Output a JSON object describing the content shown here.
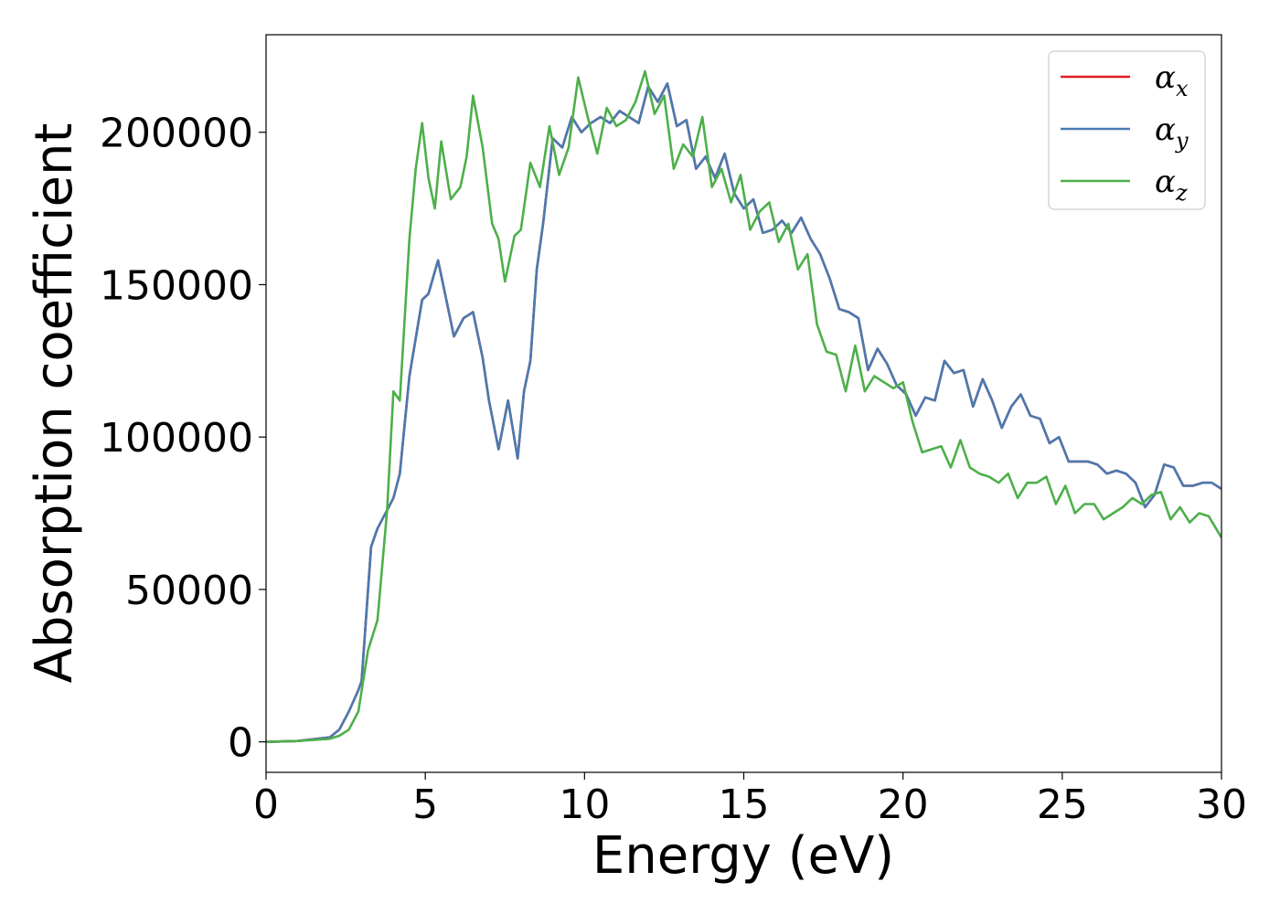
{
  "chart_data": {
    "type": "line",
    "title": "",
    "xlabel": "Energy (eV)",
    "ylabel": "Absorption coefficient",
    "xlim": [
      0,
      30
    ],
    "ylim": [
      -10000,
      232000
    ],
    "xticks": [
      0,
      5,
      10,
      15,
      20,
      25,
      30
    ],
    "yticks": [
      0,
      50000,
      100000,
      150000,
      200000
    ],
    "grid": false,
    "legend_position": "top-right",
    "series": [
      {
        "name": "α",
        "subscript": "x",
        "color": "#e41a1c",
        "x": [
          0,
          1,
          2,
          2.3,
          2.6,
          2.9,
          3.0,
          3.3,
          3.5,
          3.8,
          4.0,
          4.2,
          4.5,
          4.9,
          5.1,
          5.4,
          5.6,
          5.9,
          6.2,
          6.5,
          6.8,
          7.0,
          7.3,
          7.6,
          7.9,
          8.1,
          8.3,
          8.5,
          8.7,
          9.0,
          9.3,
          9.6,
          9.9,
          10.2,
          10.5,
          10.8,
          11.1,
          11.4,
          11.7,
          12.0,
          12.3,
          12.6,
          12.9,
          13.2,
          13.5,
          13.8,
          14.1,
          14.4,
          14.7,
          15.0,
          15.3,
          15.6,
          15.9,
          16.2,
          16.5,
          16.8,
          17.1,
          17.4,
          17.7,
          18.0,
          18.3,
          18.6,
          18.9,
          19.2,
          19.5,
          19.8,
          20.1,
          20.4,
          20.7,
          21.0,
          21.3,
          21.6,
          21.9,
          22.2,
          22.5,
          22.8,
          23.1,
          23.4,
          23.7,
          24.0,
          24.3,
          24.6,
          24.9,
          25.2,
          25.5,
          25.8,
          26.1,
          26.4,
          26.7,
          27.0,
          27.3,
          27.6,
          27.9,
          28.2,
          28.5,
          28.8,
          29.1,
          29.4,
          29.7,
          30.0
        ],
        "y": [
          0,
          300,
          1500,
          4000,
          10000,
          17000,
          20000,
          64000,
          70000,
          76000,
          80000,
          88000,
          120000,
          145000,
          147000,
          158000,
          148000,
          133000,
          139000,
          141000,
          126000,
          112000,
          96000,
          112000,
          93000,
          115000,
          125000,
          155000,
          170000,
          198000,
          195000,
          205000,
          200000,
          203000,
          205000,
          203000,
          207000,
          205000,
          203000,
          215000,
          210000,
          216000,
          202000,
          204000,
          188000,
          192000,
          185000,
          193000,
          180000,
          175000,
          178000,
          167000,
          168000,
          171000,
          167000,
          172000,
          165000,
          160000,
          152000,
          142000,
          141000,
          139000,
          122000,
          129000,
          124000,
          117000,
          114000,
          107000,
          113000,
          112000,
          125000,
          121000,
          122000,
          110000,
          119000,
          112000,
          103000,
          110000,
          114000,
          107000,
          106000,
          98000,
          100000,
          92000,
          92000,
          92000,
          91000,
          88000,
          89000,
          88000,
          85000,
          77000,
          81000,
          91000,
          90000,
          84000,
          84000,
          85000,
          85000,
          83000
        ]
      },
      {
        "name": "α",
        "subscript": "y",
        "color": "#4a7ab0",
        "x": [
          0,
          1,
          2,
          2.3,
          2.6,
          2.9,
          3.0,
          3.3,
          3.5,
          3.8,
          4.0,
          4.2,
          4.5,
          4.9,
          5.1,
          5.4,
          5.6,
          5.9,
          6.2,
          6.5,
          6.8,
          7.0,
          7.3,
          7.6,
          7.9,
          8.1,
          8.3,
          8.5,
          8.7,
          9.0,
          9.3,
          9.6,
          9.9,
          10.2,
          10.5,
          10.8,
          11.1,
          11.4,
          11.7,
          12.0,
          12.3,
          12.6,
          12.9,
          13.2,
          13.5,
          13.8,
          14.1,
          14.4,
          14.7,
          15.0,
          15.3,
          15.6,
          15.9,
          16.2,
          16.5,
          16.8,
          17.1,
          17.4,
          17.7,
          18.0,
          18.3,
          18.6,
          18.9,
          19.2,
          19.5,
          19.8,
          20.1,
          20.4,
          20.7,
          21.0,
          21.3,
          21.6,
          21.9,
          22.2,
          22.5,
          22.8,
          23.1,
          23.4,
          23.7,
          24.0,
          24.3,
          24.6,
          24.9,
          25.2,
          25.5,
          25.8,
          26.1,
          26.4,
          26.7,
          27.0,
          27.3,
          27.6,
          27.9,
          28.2,
          28.5,
          28.8,
          29.1,
          29.4,
          29.7,
          30.0
        ],
        "y": [
          0,
          300,
          1500,
          4000,
          10000,
          17000,
          20000,
          64000,
          70000,
          76000,
          80000,
          88000,
          120000,
          145000,
          147000,
          158000,
          148000,
          133000,
          139000,
          141000,
          126000,
          112000,
          96000,
          112000,
          93000,
          115000,
          125000,
          155000,
          170000,
          198000,
          195000,
          205000,
          200000,
          203000,
          205000,
          203000,
          207000,
          205000,
          203000,
          215000,
          210000,
          216000,
          202000,
          204000,
          188000,
          192000,
          185000,
          193000,
          180000,
          175000,
          178000,
          167000,
          168000,
          171000,
          167000,
          172000,
          165000,
          160000,
          152000,
          142000,
          141000,
          139000,
          122000,
          129000,
          124000,
          117000,
          114000,
          107000,
          113000,
          112000,
          125000,
          121000,
          122000,
          110000,
          119000,
          112000,
          103000,
          110000,
          114000,
          107000,
          106000,
          98000,
          100000,
          92000,
          92000,
          92000,
          91000,
          88000,
          89000,
          88000,
          85000,
          77000,
          81000,
          91000,
          90000,
          84000,
          84000,
          85000,
          85000,
          83000
        ]
      },
      {
        "name": "α",
        "subscript": "z",
        "color": "#4daf4a",
        "x": [
          0,
          1,
          2,
          2.3,
          2.6,
          2.9,
          3.2,
          3.5,
          3.8,
          4.0,
          4.2,
          4.5,
          4.7,
          4.9,
          5.1,
          5.3,
          5.5,
          5.8,
          6.1,
          6.3,
          6.5,
          6.8,
          7.1,
          7.3,
          7.5,
          7.8,
          8.0,
          8.3,
          8.6,
          8.9,
          9.2,
          9.5,
          9.8,
          10.1,
          10.4,
          10.7,
          11.0,
          11.3,
          11.6,
          11.9,
          12.2,
          12.5,
          12.8,
          13.1,
          13.4,
          13.7,
          14.0,
          14.3,
          14.6,
          14.9,
          15.2,
          15.5,
          15.8,
          16.1,
          16.4,
          16.7,
          17.0,
          17.3,
          17.6,
          17.9,
          18.2,
          18.5,
          18.8,
          19.1,
          19.4,
          19.7,
          20.0,
          20.3,
          20.6,
          20.9,
          21.2,
          21.5,
          21.8,
          22.1,
          22.4,
          22.7,
          23.0,
          23.3,
          23.6,
          23.9,
          24.2,
          24.5,
          24.8,
          25.1,
          25.4,
          25.7,
          26.0,
          26.3,
          26.6,
          26.9,
          27.2,
          27.5,
          27.8,
          28.1,
          28.4,
          28.7,
          29.0,
          29.3,
          29.6,
          30.0
        ],
        "y": [
          0,
          300,
          1000,
          2000,
          4000,
          10000,
          30000,
          40000,
          76000,
          115000,
          112000,
          165000,
          188000,
          203000,
          185000,
          175000,
          197000,
          178000,
          182000,
          192000,
          212000,
          195000,
          170000,
          165000,
          151000,
          166000,
          168000,
          190000,
          182000,
          202000,
          186000,
          195000,
          218000,
          205000,
          193000,
          208000,
          202000,
          204000,
          210000,
          220000,
          206000,
          212000,
          188000,
          196000,
          192000,
          205000,
          182000,
          188000,
          177000,
          186000,
          168000,
          174000,
          177000,
          164000,
          170000,
          155000,
          160000,
          137000,
          128000,
          127000,
          115000,
          130000,
          115000,
          120000,
          118000,
          116000,
          118000,
          105000,
          95000,
          96000,
          97000,
          90000,
          99000,
          90000,
          88000,
          87000,
          85000,
          88000,
          80000,
          85000,
          85000,
          87000,
          78000,
          84000,
          75000,
          78000,
          78000,
          73000,
          75000,
          77000,
          80000,
          78000,
          81000,
          82000,
          73000,
          77000,
          72000,
          75000,
          74000,
          67000
        ]
      }
    ]
  }
}
